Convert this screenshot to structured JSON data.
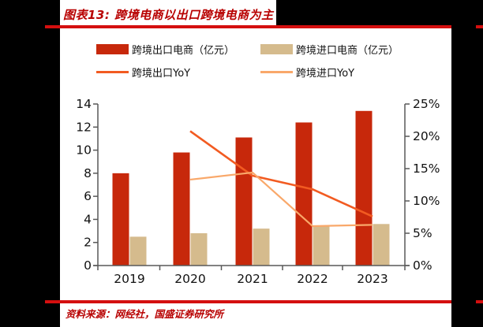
{
  "title": "图表13: 跨境电商以出口跨境电商为主",
  "footer": "资料来源：网经社，国盛证券研究所",
  "colors": {
    "accent_red": "#b80000",
    "rule_red": "#d40f0f",
    "export_bar": "#c7280b",
    "import_bar": "#d5bb8d",
    "export_line": "#f25b21",
    "import_line": "#f9a86a",
    "axis": "#595959",
    "tick_text": "#111111"
  },
  "chart_data": {
    "type": "bar",
    "title": "跨境电商以出口跨境电商为主",
    "categories": [
      "2019",
      "2020",
      "2021",
      "2022",
      "2023"
    ],
    "series": [
      {
        "name": "跨境出口电商（亿元）",
        "type": "bar",
        "axis": "left",
        "color": "#c7280b",
        "values": [
          8.0,
          9.8,
          11.1,
          12.4,
          13.4
        ]
      },
      {
        "name": "跨境进口电商（亿元）",
        "type": "bar",
        "axis": "left",
        "color": "#d5bb8d",
        "values": [
          2.5,
          2.8,
          3.2,
          3.4,
          3.6
        ]
      },
      {
        "name": "跨境出口YoY",
        "type": "line",
        "axis": "right",
        "color": "#f25b21",
        "values": [
          null,
          20.8,
          13.9,
          11.8,
          7.6
        ]
      },
      {
        "name": "跨境进口YoY",
        "type": "line",
        "axis": "right",
        "color": "#f9a86a",
        "values": [
          null,
          13.3,
          14.4,
          6.1,
          6.3
        ]
      }
    ],
    "left_axis": {
      "min": 0,
      "max": 14,
      "step": 2,
      "ticks": [
        "0",
        "2",
        "4",
        "6",
        "8",
        "10",
        "12",
        "14"
      ]
    },
    "right_axis": {
      "min": 0,
      "max": 25,
      "step": 5,
      "ticks": [
        "0%",
        "5%",
        "10%",
        "15%",
        "20%",
        "25%"
      ]
    },
    "legend_position": "top",
    "grid": false
  }
}
